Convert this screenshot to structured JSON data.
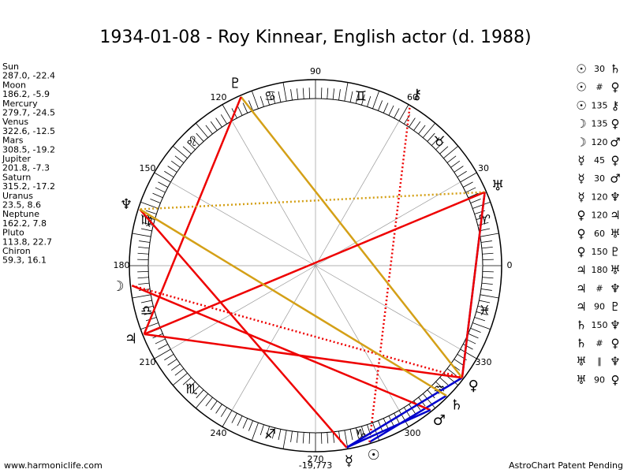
{
  "header": {
    "title": "1934-01-08 - Roy Kinnear, English actor (d. 1988)"
  },
  "planets": [
    {
      "name": "Sun",
      "pos": "287.0, -22.4",
      "glyph": "☉"
    },
    {
      "name": "Moon",
      "pos": "186.2, -5.9",
      "glyph": "☽"
    },
    {
      "name": "Mercury",
      "pos": "279.7, -24.5",
      "glyph": "☿"
    },
    {
      "name": "Venus",
      "pos": "322.6, -12.5",
      "glyph": "♀"
    },
    {
      "name": "Mars",
      "pos": "308.5, -19.2",
      "glyph": "♂"
    },
    {
      "name": "Jupiter",
      "pos": "201.8, -7.3",
      "glyph": "♃"
    },
    {
      "name": "Saturn",
      "pos": "315.2, -17.2",
      "glyph": "♄"
    },
    {
      "name": "Uranus",
      "pos": "23.5, 8.6",
      "glyph": "♅"
    },
    {
      "name": "Neptune",
      "pos": "162.2, 7.8",
      "glyph": "♆"
    },
    {
      "name": "Pluto",
      "pos": "113.8, 22.7",
      "glyph": "♇"
    },
    {
      "name": "Chiron",
      "pos": "59.3, 16.1",
      "glyph": "⚷"
    }
  ],
  "aspects": [
    {
      "from": "☉",
      "aspect": "30",
      "to": "♄"
    },
    {
      "from": "☉",
      "aspect": "#",
      "to": "♀"
    },
    {
      "from": "☉",
      "aspect": "135",
      "to": "⚷"
    },
    {
      "from": "☽",
      "aspect": "135",
      "to": "♀"
    },
    {
      "from": "☽",
      "aspect": "120",
      "to": "♂"
    },
    {
      "from": "☿",
      "aspect": "45",
      "to": "♀"
    },
    {
      "from": "☿",
      "aspect": "30",
      "to": "♂"
    },
    {
      "from": "☿",
      "aspect": "120",
      "to": "♆"
    },
    {
      "from": "♀",
      "aspect": "120",
      "to": "♃"
    },
    {
      "from": "♀",
      "aspect": "60",
      "to": "♅"
    },
    {
      "from": "♀",
      "aspect": "150",
      "to": "♇"
    },
    {
      "from": "♃",
      "aspect": "180",
      "to": "♅"
    },
    {
      "from": "♃",
      "aspect": "#",
      "to": "♆"
    },
    {
      "from": "♃",
      "aspect": "90",
      "to": "♇"
    },
    {
      "from": "♄",
      "aspect": "150",
      "to": "♆"
    },
    {
      "from": "♄",
      "aspect": "#",
      "to": "♀"
    },
    {
      "from": "♅",
      "aspect": "∥",
      "to": "♆"
    },
    {
      "from": "♅",
      "aspect": "90",
      "to": "♀"
    }
  ],
  "zodiac": [
    "♈",
    "♉",
    "♊",
    "♋",
    "♌",
    "♍",
    "♎",
    "♏",
    "♐",
    "♑",
    "♒",
    "♓"
  ],
  "degree_labels": [
    0,
    30,
    60,
    90,
    120,
    150,
    180,
    210,
    240,
    270,
    300,
    330
  ],
  "footer": {
    "site": "www.harmoniclife.com",
    "number": "-19,773",
    "notice": "AstroChart Patent Pending"
  }
}
